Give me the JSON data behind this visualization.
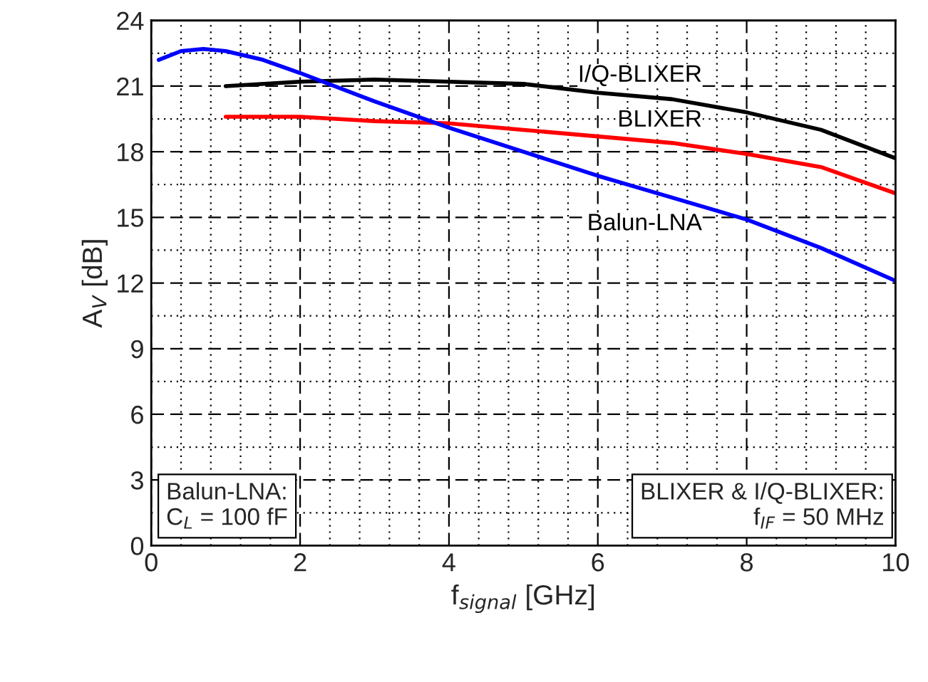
{
  "chart_data": {
    "type": "line",
    "xlabel": "f$_{signal}$ [GHz]",
    "ylabel": "A$_{V}$ [dB]",
    "xlim": [
      0,
      10
    ],
    "xticks": [
      0,
      2,
      4,
      6,
      8,
      10
    ],
    "ylim": [
      0,
      24
    ],
    "yticks": [
      0,
      3,
      6,
      9,
      12,
      15,
      18,
      21,
      24
    ],
    "grid": true,
    "legend": false,
    "marker": "none",
    "line_style": "solid",
    "series": [
      {
        "name": "I/Q-BLIXER",
        "color": "#000000",
        "x": [
          1,
          2,
          3,
          4,
          5,
          6,
          7,
          8,
          9,
          10
        ],
        "values": [
          21.0,
          21.2,
          21.3,
          21.2,
          21.1,
          20.7,
          20.4,
          19.8,
          19.0,
          17.7
        ]
      },
      {
        "name": "BLIXER",
        "color": "#ff0000",
        "x": [
          1,
          2,
          3,
          4,
          5,
          6,
          7,
          8,
          9,
          10
        ],
        "values": [
          19.6,
          19.6,
          19.4,
          19.3,
          19.0,
          18.7,
          18.4,
          17.9,
          17.3,
          16.1
        ]
      },
      {
        "name": "Balun-LNA",
        "color": "#0000ff",
        "x": [
          0.1,
          0.4,
          0.7,
          1,
          1.5,
          2,
          3,
          4,
          5,
          6,
          7,
          8,
          9,
          10
        ],
        "values": [
          22.2,
          22.6,
          22.7,
          22.6,
          22.2,
          21.6,
          20.3,
          19.1,
          18.0,
          16.9,
          15.9,
          14.9,
          13.6,
          12.1
        ]
      }
    ],
    "annotations": [
      "Balun-LNA:\nC$_{L}$ = 100 fF",
      "BLIXER & I/Q-BLIXER:\nf$_{IF}$ = 50 MHz"
    ]
  }
}
